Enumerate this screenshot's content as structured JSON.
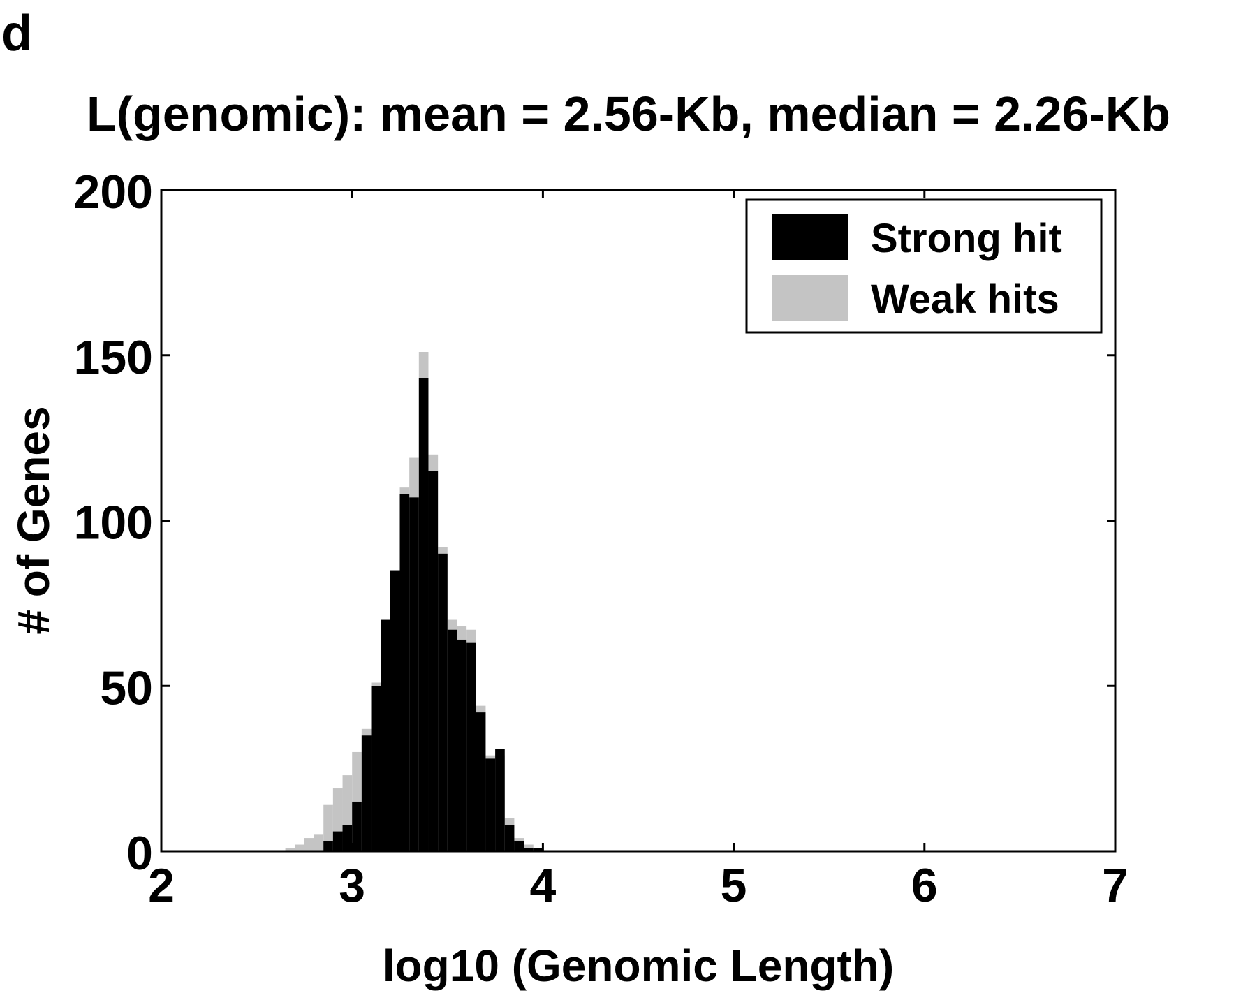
{
  "panel_label": "d",
  "chart_data": {
    "type": "bar",
    "title": "L(genomic): mean = 2.56-Kb, median = 2.26-Kb",
    "xlabel": "log10 (Genomic Length)",
    "ylabel": "# of Genes",
    "xlim": [
      2,
      7
    ],
    "ylim": [
      0,
      200
    ],
    "xticks": [
      2,
      3,
      4,
      5,
      6,
      7
    ],
    "yticks": [
      0,
      50,
      100,
      150,
      200
    ],
    "bin_width": 0.05,
    "bin_starts": [
      2.15,
      2.2,
      2.25,
      2.3,
      2.35,
      2.4,
      2.45,
      2.5,
      2.55,
      2.6,
      2.65,
      2.7,
      2.75,
      2.8,
      2.85,
      2.9,
      2.95,
      3.0,
      3.05,
      3.1,
      3.15,
      3.2,
      3.25,
      3.3,
      3.35,
      3.4,
      3.45,
      3.5,
      3.55,
      3.6,
      3.65,
      3.7,
      3.75,
      3.8,
      3.85,
      3.9,
      3.95,
      4.0,
      4.05
    ],
    "series": [
      {
        "name": "Strong hit",
        "color": "#000000",
        "values": [
          0,
          0,
          0,
          0,
          0,
          0,
          0,
          0,
          0,
          0,
          0,
          0,
          0,
          0,
          3,
          6,
          8,
          15,
          35,
          50,
          70,
          85,
          108,
          107,
          143,
          115,
          90,
          67,
          64,
          63,
          42,
          28,
          31,
          8,
          3,
          1,
          1,
          0,
          0
        ]
      },
      {
        "name": "Weak hits",
        "color": "#c4c4c4",
        "values": [
          0,
          0,
          0,
          0,
          0,
          0,
          0,
          0,
          0,
          0,
          1,
          2,
          4,
          5,
          14,
          19,
          23,
          30,
          37,
          51,
          67,
          77,
          110,
          119,
          151,
          120,
          92,
          70,
          68,
          67,
          44,
          29,
          29,
          10,
          4,
          2,
          1,
          0,
          0
        ]
      }
    ],
    "legend": {
      "position": "top-right",
      "entries": [
        "Strong hit",
        "Weak hits"
      ]
    },
    "grid": false
  }
}
